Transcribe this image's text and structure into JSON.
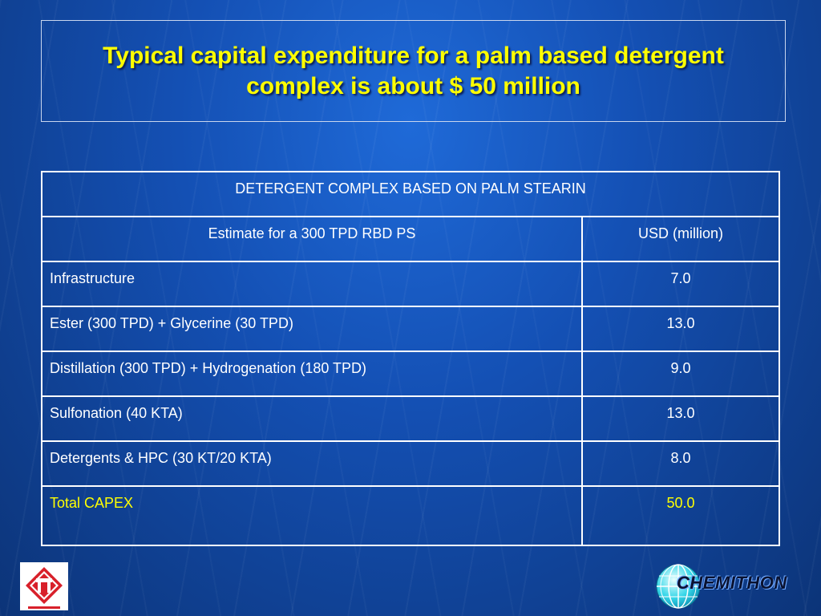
{
  "slide": {
    "title": "Typical capital expenditure for a palm based detergent complex is about $ 50 million"
  },
  "table": {
    "caption": "DETERGENT COMPLEX BASED ON PALM STEARIN",
    "headers": [
      "Estimate for a 300 TPD RBD PS",
      "USD (million)"
    ],
    "rows": [
      {
        "item": "Infrastructure",
        "usd": "7.0"
      },
      {
        "item": "Ester (300 TPD) + Glycerine (30 TPD)",
        "usd": "13.0"
      },
      {
        "item": "Distillation (300 TPD) + Hydrogenation (180 TPD)",
        "usd": "9.0"
      },
      {
        "item": "Sulfonation (40 KTA)",
        "usd": "13.0"
      },
      {
        "item": "Detergents & HPC (30 KT/20 KTA)",
        "usd": "8.0"
      }
    ],
    "total": {
      "item": "Total CAPEX",
      "usd": "50.0"
    }
  },
  "logos": {
    "left": {
      "icon": "company-logo-icon",
      "letter": "T"
    },
    "right": {
      "icon": "globe-icon",
      "brand": "CHEMITHON"
    }
  },
  "colors": {
    "title": "#ffff00",
    "total_row": "#ffff00",
    "table_text": "#ffffff",
    "background": "#1450b4"
  }
}
